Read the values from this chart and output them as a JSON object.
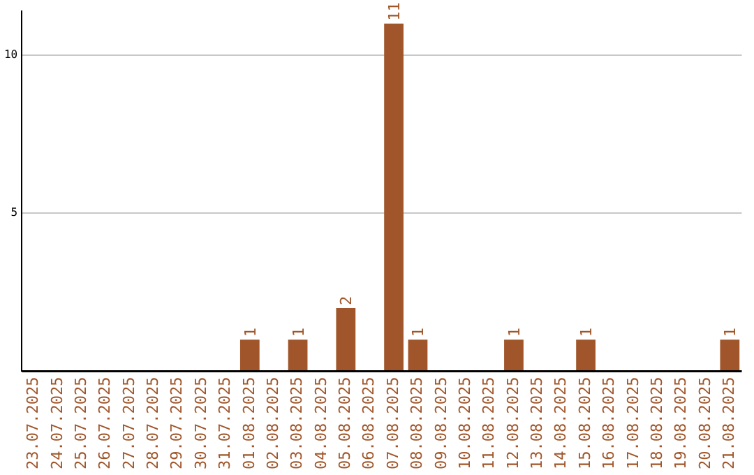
{
  "chart_data": {
    "type": "bar",
    "categories": [
      "23.07.2025",
      "24.07.2025",
      "25.07.2025",
      "26.07.2025",
      "27.07.2025",
      "28.07.2025",
      "29.07.2025",
      "30.07.2025",
      "31.07.2025",
      "01.08.2025",
      "02.08.2025",
      "03.08.2025",
      "04.08.2025",
      "05.08.2025",
      "06.08.2025",
      "07.08.2025",
      "08.08.2025",
      "09.08.2025",
      "10.08.2025",
      "11.08.2025",
      "12.08.2025",
      "13.08.2025",
      "14.08.2025",
      "15.08.2025",
      "16.08.2025",
      "17.08.2025",
      "18.08.2025",
      "19.08.2025",
      "20.08.2025",
      "21.08.2025"
    ],
    "values": [
      0,
      0,
      0,
      0,
      0,
      0,
      0,
      0,
      0,
      1,
      0,
      1,
      0,
      2,
      0,
      11,
      1,
      0,
      0,
      0,
      1,
      0,
      0,
      1,
      0,
      0,
      0,
      0,
      0,
      1
    ],
    "value_labels": [
      null,
      null,
      null,
      null,
      null,
      null,
      null,
      null,
      null,
      "1",
      null,
      "1",
      null,
      "2",
      null,
      "11",
      "1",
      null,
      null,
      null,
      "1",
      null,
      null,
      "1",
      null,
      null,
      null,
      null,
      null,
      "1"
    ],
    "color": "#a0562a",
    "ylim": [
      0,
      11.4
    ],
    "yticks": [
      {
        "value": 0,
        "label": null
      },
      5,
      10
    ],
    "grid": "y",
    "legend": false
  }
}
